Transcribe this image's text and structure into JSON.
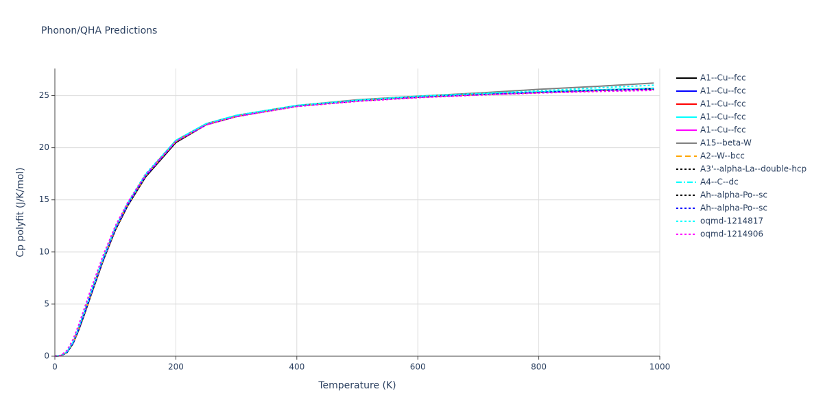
{
  "chart_data": {
    "type": "line",
    "title": "Phonon/QHA Predictions",
    "x_label": "Temperature (K)",
    "y_label": "Cp polyfit (J/K/mol)",
    "x": [
      0,
      10,
      20,
      30,
      40,
      50,
      60,
      80,
      100,
      120,
      150,
      200,
      250,
      300,
      400,
      500,
      600,
      700,
      800,
      900,
      990
    ],
    "xlim": [
      0,
      1000
    ],
    "xticks": [
      0,
      200,
      400,
      600,
      800,
      1000
    ],
    "ylim": [
      0,
      27.6
    ],
    "yticks": [
      0,
      5,
      10,
      15,
      20,
      25
    ],
    "grid": true,
    "legend": "right",
    "series": [
      {
        "name": "A1--Cu--fcc",
        "color": "#000000",
        "dash": "solid",
        "values": [
          0,
          0.05,
          0.35,
          1.2,
          2.6,
          4.2,
          5.9,
          9.2,
          12.1,
          14.4,
          17.2,
          20.5,
          22.2,
          23.0,
          24.0,
          24.5,
          24.9,
          25.1,
          25.35,
          25.55,
          25.7
        ]
      },
      {
        "name": "A1--Cu--fcc",
        "color": "#0000ff",
        "dash": "solid",
        "values": [
          0,
          0.05,
          0.38,
          1.25,
          2.7,
          4.3,
          6.0,
          9.3,
          12.2,
          14.5,
          17.3,
          20.6,
          22.2,
          23.0,
          24.0,
          24.5,
          24.85,
          25.1,
          25.3,
          25.5,
          25.65
        ]
      },
      {
        "name": "A1--Cu--fcc",
        "color": "#ff0000",
        "dash": "solid",
        "values": [
          0,
          0.05,
          0.38,
          1.25,
          2.7,
          4.3,
          6.0,
          9.3,
          12.2,
          14.5,
          17.3,
          20.6,
          22.2,
          23.0,
          24.0,
          24.5,
          24.85,
          25.1,
          25.3,
          25.5,
          25.65
        ]
      },
      {
        "name": "A1--Cu--fcc",
        "color": "#00ffff",
        "dash": "solid",
        "values": [
          0,
          0.06,
          0.4,
          1.3,
          2.8,
          4.4,
          6.1,
          9.4,
          12.3,
          14.6,
          17.4,
          20.7,
          22.3,
          23.1,
          24.05,
          24.55,
          24.9,
          25.15,
          25.35,
          25.55,
          25.7
        ]
      },
      {
        "name": "A1--Cu--fcc",
        "color": "#ff00ff",
        "dash": "solid",
        "values": [
          0,
          0.05,
          0.38,
          1.25,
          2.7,
          4.3,
          6.0,
          9.3,
          12.2,
          14.5,
          17.3,
          20.6,
          22.2,
          23.0,
          24.0,
          24.5,
          24.85,
          25.1,
          25.3,
          25.5,
          25.65
        ]
      },
      {
        "name": "A15--beta-W",
        "color": "#808080",
        "dash": "solid",
        "values": [
          0,
          0.06,
          0.4,
          1.3,
          2.8,
          4.4,
          6.1,
          9.4,
          12.3,
          14.6,
          17.4,
          20.7,
          22.3,
          23.1,
          24.05,
          24.6,
          24.95,
          25.25,
          25.6,
          25.9,
          26.2
        ]
      },
      {
        "name": "A2--W--bcc",
        "color": "#ffa500",
        "dash": "dash",
        "values": [
          0,
          0.05,
          0.38,
          1.25,
          2.7,
          4.3,
          6.0,
          9.3,
          12.2,
          14.5,
          17.3,
          20.6,
          22.2,
          23.0,
          24.0,
          24.5,
          24.85,
          25.1,
          25.3,
          25.5,
          25.65
        ]
      },
      {
        "name": "A3'--alpha-La--double-hcp",
        "color": "#000000",
        "dash": "dot",
        "values": [
          0,
          0.05,
          0.38,
          1.25,
          2.7,
          4.3,
          6.0,
          9.3,
          12.2,
          14.5,
          17.3,
          20.6,
          22.2,
          23.0,
          24.0,
          24.5,
          24.85,
          25.1,
          25.3,
          25.5,
          25.65
        ]
      },
      {
        "name": "A4--C--dc",
        "color": "#00ffff",
        "dash": "dashdot",
        "values": [
          0,
          0.06,
          0.4,
          1.3,
          2.8,
          4.4,
          6.1,
          9.4,
          12.3,
          14.6,
          17.4,
          20.7,
          22.3,
          23.1,
          24.05,
          24.55,
          24.9,
          25.15,
          25.35,
          25.55,
          25.7
        ]
      },
      {
        "name": "Ah--alpha-Po--sc",
        "color": "#000000",
        "dash": "dot",
        "values": [
          0,
          0.05,
          0.38,
          1.25,
          2.7,
          4.3,
          6.0,
          9.3,
          12.2,
          14.5,
          17.3,
          20.6,
          22.2,
          23.0,
          24.0,
          24.5,
          24.85,
          25.1,
          25.3,
          25.5,
          25.6
        ]
      },
      {
        "name": "Ah--alpha-Po--sc",
        "color": "#0000ff",
        "dash": "dot",
        "values": [
          0,
          0.05,
          0.38,
          1.25,
          2.7,
          4.3,
          6.0,
          9.3,
          12.2,
          14.5,
          17.3,
          20.6,
          22.2,
          23.0,
          24.0,
          24.5,
          24.85,
          25.1,
          25.3,
          25.5,
          25.6
        ]
      },
      {
        "name": "oqmd-1214817",
        "color": "#00ffff",
        "dash": "dot",
        "values": [
          0,
          0.06,
          0.45,
          1.4,
          2.9,
          4.6,
          6.3,
          9.5,
          12.4,
          14.7,
          17.5,
          20.7,
          22.3,
          23.1,
          24.05,
          24.55,
          24.95,
          25.2,
          25.45,
          25.75,
          26.0
        ]
      },
      {
        "name": "oqmd-1214906",
        "color": "#ff00ff",
        "dash": "dot",
        "values": [
          0,
          0.08,
          0.55,
          1.6,
          3.1,
          4.8,
          6.5,
          9.7,
          12.5,
          14.7,
          17.4,
          20.6,
          22.2,
          23.0,
          23.95,
          24.45,
          24.8,
          25.05,
          25.25,
          25.4,
          25.5
        ]
      }
    ]
  }
}
